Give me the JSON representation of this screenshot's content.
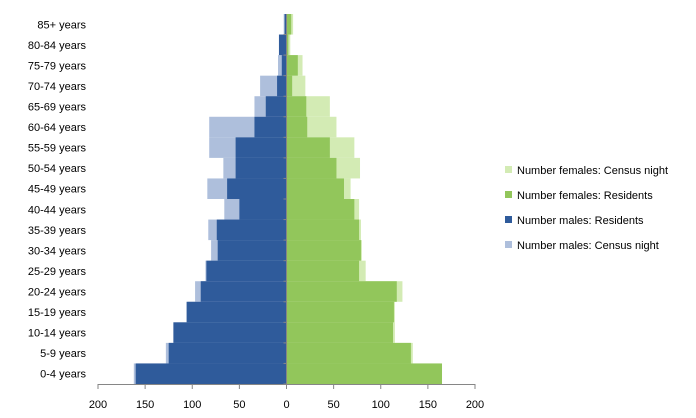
{
  "chart_data": {
    "type": "bar",
    "orientation": "horizontal-pyramid",
    "categories": [
      "0-4 years",
      "5-9 years",
      "10-14 years",
      "15-19 years",
      "20-24 years",
      "25-29 years",
      "30-34 years",
      "35-39 years",
      "40-44 years",
      "45-49 years",
      "50-54 years",
      "55-59 years",
      "60-64 years",
      "65-69 years",
      "70-74 years",
      "75-79 years",
      "80-84 years",
      "85+ years"
    ],
    "series": [
      {
        "name": "Number males: Census night",
        "side": "left",
        "color": "#aebfdc",
        "values": [
          162,
          128,
          120,
          105,
          97,
          86,
          80,
          83,
          66,
          84,
          67,
          82,
          82,
          34,
          28,
          9,
          8,
          3
        ]
      },
      {
        "name": "Number males: Residents",
        "side": "left",
        "color": "#2f5b9b",
        "values": [
          160,
          125,
          120,
          106,
          91,
          85,
          73,
          74,
          50,
          63,
          54,
          54,
          34,
          22,
          10,
          5,
          8,
          2
        ]
      },
      {
        "name": "Number females: Census night",
        "side": "right",
        "color": "#d3ebb4",
        "values": [
          163,
          134,
          115,
          115,
          123,
          84,
          80,
          79,
          77,
          68,
          78,
          72,
          53,
          46,
          20,
          17,
          4,
          7
        ]
      },
      {
        "name": "Number females: Residents",
        "side": "right",
        "color": "#92c65b",
        "values": [
          165,
          132,
          113,
          114,
          117,
          77,
          79,
          77,
          72,
          61,
          53,
          46,
          22,
          21,
          6,
          12,
          2,
          5
        ]
      }
    ],
    "xlim": [
      -200,
      200
    ],
    "xticks": [
      -200,
      -150,
      -100,
      -50,
      0,
      50,
      100,
      150,
      200
    ],
    "xtick_labels": [
      "200",
      "150",
      "100",
      "50",
      "0",
      "50",
      "100",
      "150",
      "200"
    ],
    "legend": {
      "placement": "right",
      "order": [
        "Number females: Census night",
        "Number females: Residents",
        "Number males: Residents",
        "Number males: Census night"
      ]
    },
    "grid": false,
    "title": "",
    "xlabel": "",
    "ylabel": ""
  }
}
